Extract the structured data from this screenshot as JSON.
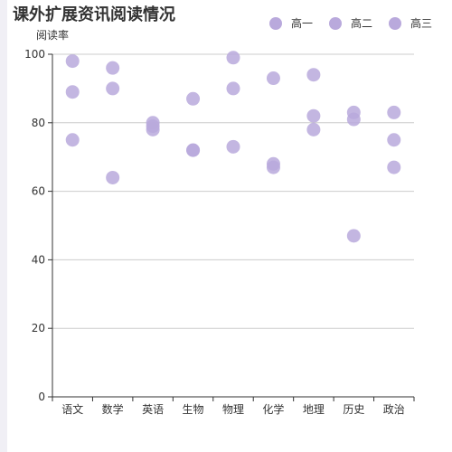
{
  "colors": {
    "marker": "#b9a9dc",
    "axis": "#333333",
    "grid": "#cccccc"
  },
  "chart_data": {
    "type": "scatter",
    "title": "课外扩展资讯阅读情况",
    "ylabel": "阅读率",
    "xlabel": "",
    "categories": [
      "语文",
      "数学",
      "英语",
      "生物",
      "物理",
      "化学",
      "地理",
      "历史",
      "政治"
    ],
    "ylim": [
      0,
      100
    ],
    "yticks": [
      0,
      20,
      40,
      60,
      80,
      100
    ],
    "grid": true,
    "legend_position": "top-right",
    "series": [
      {
        "name": "高一",
        "values": [
          98,
          96,
          80,
          87,
          99,
          93,
          94,
          83,
          83
        ]
      },
      {
        "name": "高二",
        "values": [
          89,
          90,
          79,
          72,
          90,
          68,
          82,
          81,
          75
        ]
      },
      {
        "name": "高三",
        "values": [
          75,
          64,
          78,
          72,
          73,
          67,
          78,
          47,
          67
        ]
      }
    ]
  }
}
